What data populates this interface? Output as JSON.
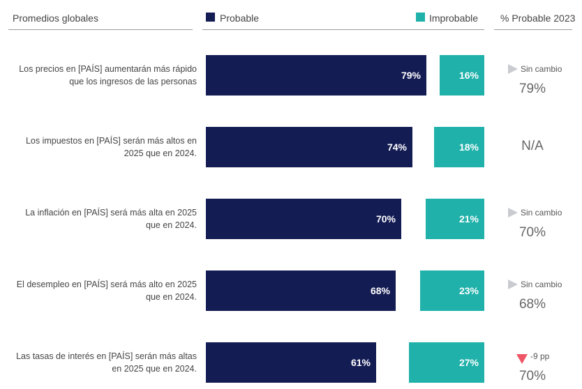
{
  "header": {
    "title": "Promedios globales",
    "legend_probable": "Probable",
    "legend_improbable": "Improbable",
    "prev_title": "% Probable 2023"
  },
  "colors": {
    "probable": "#141c54",
    "improbable": "#1fb1aa",
    "neutral_marker": "#c8cbcf",
    "down_marker": "#ee5565"
  },
  "chart_data": {
    "type": "bar",
    "orientation": "horizontal",
    "title": "Promedios globales",
    "series_names": [
      "Probable",
      "Improbable"
    ],
    "rows": [
      {
        "label_lines": [
          "Los precios en [PAÍS] aumentarán más rápido",
          "que los ingresos de las personas"
        ],
        "probable": 79,
        "probable_label": "79%",
        "improbable": 16,
        "improbable_label": "16%",
        "change": "Sin cambio",
        "change_dir": "none",
        "prev_2023": "79%"
      },
      {
        "label_lines": [
          "Los impuestos en [PAÍS] serán más altos en",
          "2025 que en 2024."
        ],
        "probable": 74,
        "probable_label": "74%",
        "improbable": 18,
        "improbable_label": "18%",
        "change": "",
        "change_dir": "na",
        "prev_2023": "N/A"
      },
      {
        "label_lines": [
          "La inflación en [PAÍS] será más alta en 2025",
          "que en 2024."
        ],
        "probable": 70,
        "probable_label": "70%",
        "improbable": 21,
        "improbable_label": "21%",
        "change": "Sin cambio",
        "change_dir": "none",
        "prev_2023": "70%"
      },
      {
        "label_lines": [
          "El desempleo en [PAÍS] será más alto en 2025",
          "que en 2024."
        ],
        "probable": 68,
        "probable_label": "68%",
        "improbable": 23,
        "improbable_label": "23%",
        "change": "Sin cambio",
        "change_dir": "none",
        "prev_2023": "68%"
      },
      {
        "label_lines": [
          "Las tasas de interés en [PAÍS] serán más altas",
          "en 2025 que en 2024."
        ],
        "probable": 61,
        "probable_label": "61%",
        "improbable": 27,
        "improbable_label": "27%",
        "change": "-9 pp",
        "change_dir": "down",
        "prev_2023": "70%"
      }
    ]
  }
}
